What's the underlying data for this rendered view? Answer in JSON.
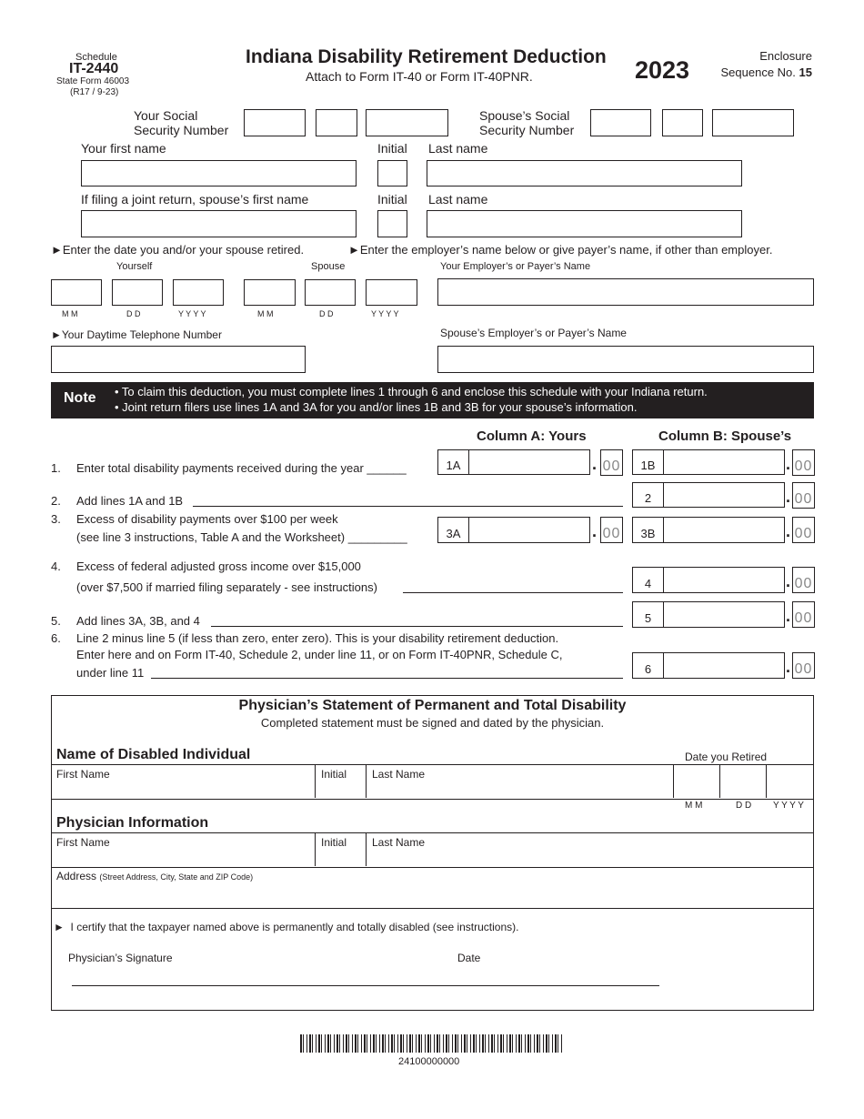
{
  "header": {
    "schedule": "Schedule",
    "form_id": "IT-2440",
    "state_form": "State Form 46003",
    "revision": "(R17 / 9-23)",
    "title": "Indiana Disability Retirement Deduction",
    "subtitle": "Attach to Form IT-40 or Form IT-40PNR.",
    "year": "2023",
    "enclosure": "Enclosure",
    "sequence_label": "Sequence No.",
    "sequence_no": "15"
  },
  "taxpayer": {
    "your_ssn_1": "Your Social",
    "your_ssn_2": "Security Number",
    "spouse_ssn_1": "Spouse’s Social",
    "spouse_ssn_2": "Security Number",
    "first_name": "Your first name",
    "initial": "Initial",
    "last_name": "Last name",
    "spouse_first_name": "If filing a joint return, spouse’s first name",
    "spouse_initial": "Initial",
    "spouse_last_name": "Last name"
  },
  "retirement": {
    "date_instr": "►Enter the date you and/or your spouse retired.",
    "employer_instr": "►Enter the employer’s name below or give payer’s name, if other than employer.",
    "yourself": "Yourself",
    "spouse": "Spouse",
    "mm": "M M",
    "dd": "D D",
    "yyyy": "Y Y Y Y",
    "employer_label": "Your Employer’s or Payer’s Name",
    "phone_label": "►Your Daytime Telephone Number",
    "spouse_employer_label": "Spouse’s Employer’s or Payer’s Name"
  },
  "note": {
    "label": "Note",
    "bullet1": "• To claim this deduction, you must complete lines 1 through 6 and enclose this schedule with your Indiana return.",
    "bullet2": "• Joint return filers use lines 1A and 3A for you and/or lines 1B and 3B for your spouse’s information."
  },
  "columns": {
    "a": "Column A: Yours",
    "b": "Column B: Spouse’s"
  },
  "lines": [
    {
      "num": "1.",
      "text": "Enter total disability payments received during the year ______"
    },
    {
      "num": "2.",
      "text": "Add lines 1A and 1B"
    },
    {
      "num": "3.",
      "text": "Excess of disability payments over $100 per week",
      "text2": "(see line 3 instructions, Table A and the Worksheet) _________"
    },
    {
      "num": "4.",
      "text": "Excess of federal adjusted gross income over $15,000",
      "text2": "(over $7,500 if married filing separately - see instructions)"
    },
    {
      "num": "5.",
      "text": "Add lines 3A, 3B, and 4"
    },
    {
      "num": "6.",
      "text": "Line 2 minus line 5 (if less than zero, enter zero). This is your disability retirement deduction.",
      "text2": "Enter here and on Form IT-40, Schedule 2, under line 11, or on Form IT-40PNR, Schedule C,",
      "text3": "under line 11"
    }
  ],
  "boxes": {
    "b1a": "1A",
    "b1b": "1B",
    "b2": "2",
    "b3a": "3A",
    "b3b": "3B",
    "b4": "4",
    "b5": "5",
    "b6": "6",
    "dot": ".",
    "cents": "00"
  },
  "physician": {
    "title": "Physician’s Statement of Permanent and Total Disability",
    "subtitle": "Completed statement must be signed and dated by the physician.",
    "disabled_heading": "Name of Disabled Individual",
    "date_retired": "Date you Retired",
    "first_name": "First Name",
    "initial": "Initial",
    "last_name": "Last Name",
    "mm": "M M",
    "dd": "D D",
    "yyyy": "Y Y Y Y",
    "info_heading": "Physician Information",
    "address": "Address",
    "address_hint": "(Street Address, City, State and ZIP Code)",
    "certify": "I certify that the taxpayer named above is permanently and totally disabled (see instructions).",
    "signature": "Physician’s Signature",
    "date": "Date"
  },
  "barcode": {
    "number": "24100000000"
  }
}
